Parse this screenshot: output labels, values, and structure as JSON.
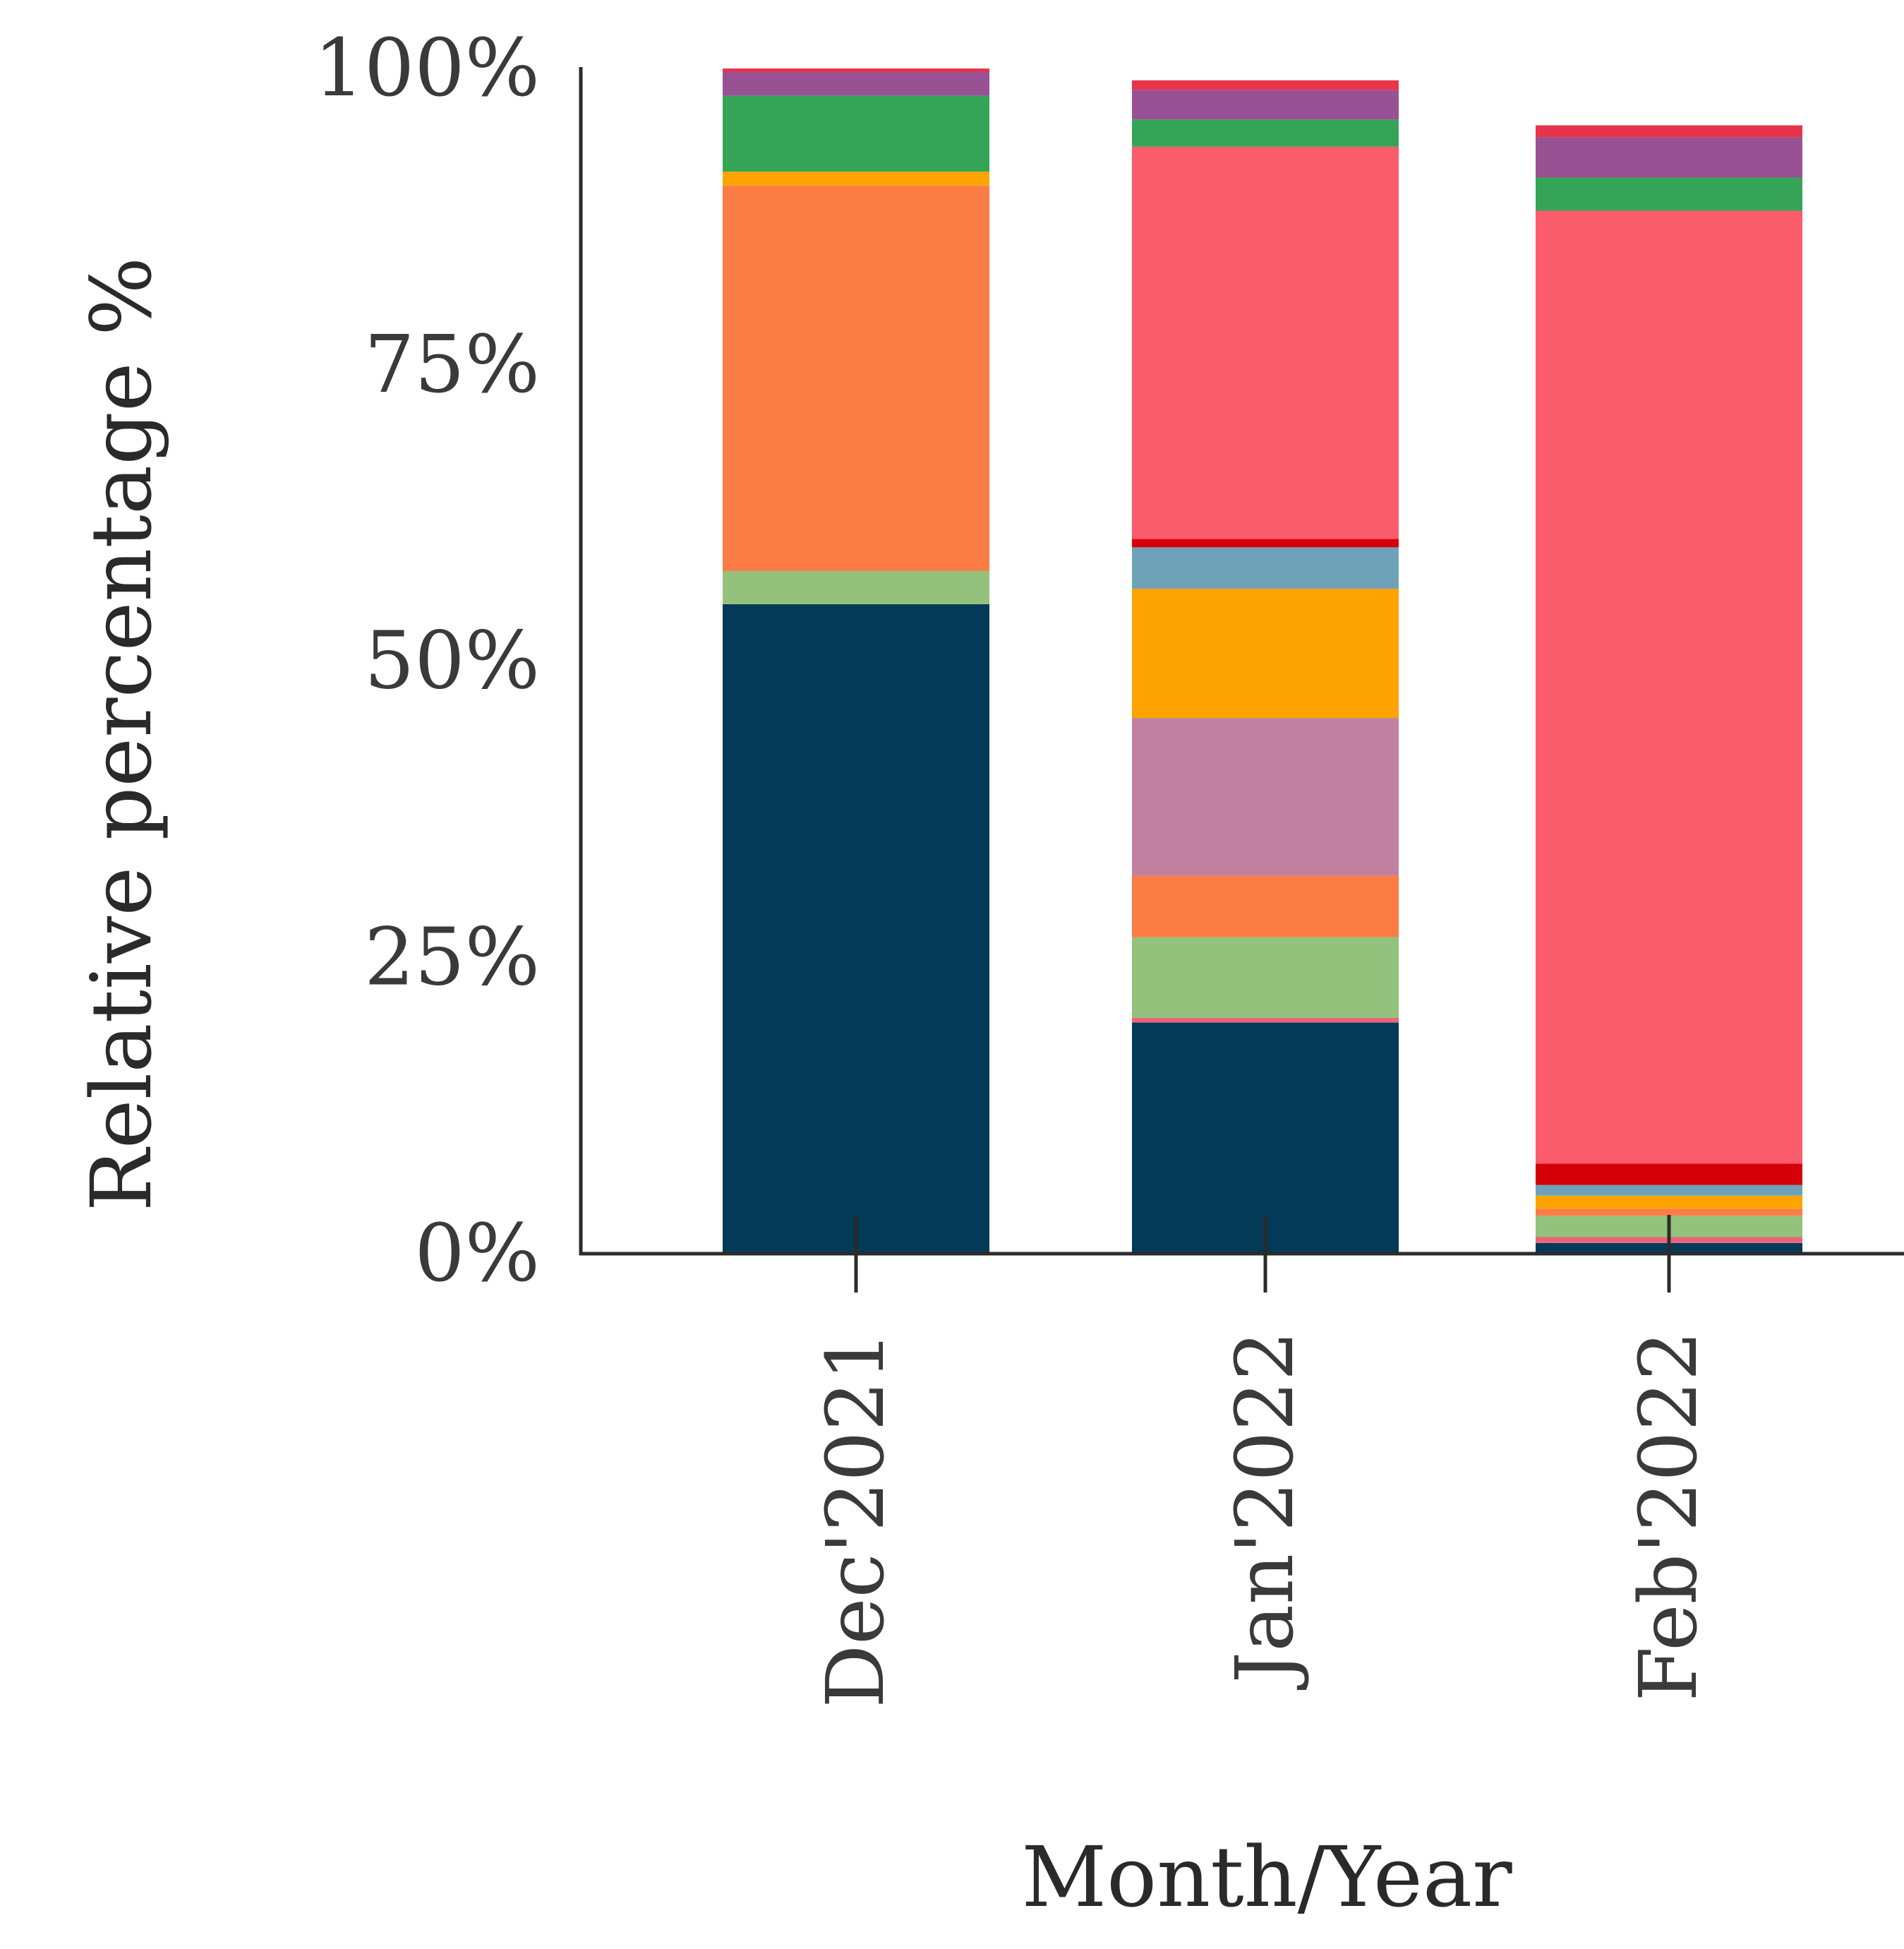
{
  "chart_data": {
    "type": "bar",
    "stacked": true,
    "title": "",
    "xlabel": "Month/Year",
    "ylabel": "Relative percentage %",
    "ylim": [
      0,
      100
    ],
    "yticks": [
      "0%",
      "25%",
      "50%",
      "75%",
      "100%"
    ],
    "ytick_values": [
      0,
      25,
      50,
      75,
      100
    ],
    "grid": false,
    "legend": "none",
    "categories": [
      "Dec'2021",
      "Jan'2022",
      "Feb'2022"
    ],
    "series": [
      {
        "color": "#033a57",
        "values": [
          54.8,
          19.5,
          0.9
        ]
      },
      {
        "color": "#ec6478",
        "values": [
          0.0,
          0.4,
          0.5
        ]
      },
      {
        "color": "#92c27b",
        "values": [
          2.8,
          6.8,
          1.8
        ]
      },
      {
        "color": "#fb7c45",
        "values": [
          32.5,
          5.2,
          0.6
        ]
      },
      {
        "color": "#c081a0",
        "values": [
          0.0,
          13.3,
          0.0
        ]
      },
      {
        "color": "#fda403",
        "values": [
          1.2,
          10.9,
          1.1
        ]
      },
      {
        "color": "#6ea2b8",
        "values": [
          0.0,
          3.5,
          0.9
        ]
      },
      {
        "color": "#d6000a",
        "values": [
          0.0,
          0.7,
          1.8
        ]
      },
      {
        "color": "#fa5c6c",
        "values": [
          0.0,
          33.1,
          80.4
        ]
      },
      {
        "color": "#35a457",
        "values": [
          6.4,
          2.3,
          2.8
        ]
      },
      {
        "color": "#985193",
        "values": [
          2.0,
          2.5,
          3.4
        ]
      },
      {
        "color": "#e8344a",
        "values": [
          0.3,
          0.8,
          1.0
        ]
      }
    ]
  }
}
